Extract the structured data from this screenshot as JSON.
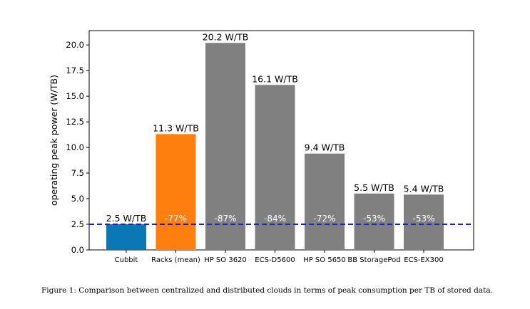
{
  "chart_data": {
    "type": "bar",
    "title": "",
    "xlabel": "",
    "ylabel": "operating peak power (W/TB)",
    "ylim": [
      0,
      21.4
    ],
    "yticks": [
      "0.0",
      "2.5",
      "5.0",
      "7.5",
      "10.0",
      "12.5",
      "15.0",
      "17.5",
      "20.0"
    ],
    "categories": [
      "Cubbit",
      "Racks (mean)",
      "HP SO 3620",
      "ECS-D5600",
      "HP SO 5650",
      "BB StoragePod",
      "ECS-EX300"
    ],
    "values": [
      2.5,
      11.3,
      20.2,
      16.1,
      9.4,
      5.5,
      5.4
    ],
    "value_labels": [
      "2.5 W/TB",
      "11.3 W/TB",
      "20.2 W/TB",
      "16.1 W/TB",
      "9.4 W/TB",
      "5.5 W/TB",
      "5.4 W/TB"
    ],
    "reduction_labels": [
      "",
      "-77%",
      "-87%",
      "-84%",
      "-72%",
      "-53%",
      "-53%"
    ],
    "bar_colors": [
      "#0a78b4",
      "#ff7f0e",
      "#808080",
      "#808080",
      "#808080",
      "#808080",
      "#808080"
    ],
    "reference_line": {
      "value": 2.5,
      "color": "#1f1fc8",
      "style": "dashed"
    }
  },
  "caption": "Figure 1: Comparison between centralized and distributed clouds in terms of peak consumption per TB of stored data."
}
